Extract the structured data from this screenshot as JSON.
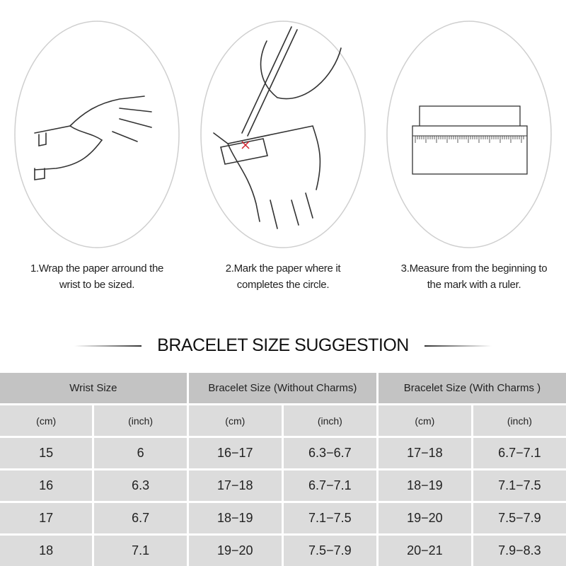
{
  "steps": [
    {
      "line1": "1.Wrap the paper arround the",
      "line2": "wrist to be sized."
    },
    {
      "line1": "2.Mark the paper where it",
      "line2": "completes the circle."
    },
    {
      "line1": "3.Measure from the beginning to",
      "line2": "the mark with a ruler."
    }
  ],
  "title": "BRACELET SIZE SUGGESTION",
  "colors": {
    "header": "#c3c3c3",
    "cell": "#dcdcdc",
    "mark": "#d0202a"
  },
  "table": {
    "groups": [
      "Wrist Size",
      "Bracelet Size (Without Charms)",
      "Bracelet Size (With Charms )"
    ],
    "units": [
      "(cm)",
      "(inch)",
      "(cm)",
      "(inch)",
      "(cm)",
      "(inch)"
    ],
    "rows": [
      [
        "15",
        "6",
        "16−17",
        "6.3−6.7",
        "17−18",
        "6.7−7.1"
      ],
      [
        "16",
        "6.3",
        "17−18",
        "6.7−7.1",
        "18−19",
        "7.1−7.5"
      ],
      [
        "17",
        "6.7",
        "18−19",
        "7.1−7.5",
        "19−20",
        "7.5−7.9"
      ],
      [
        "18",
        "7.1",
        "19−20",
        "7.5−7.9",
        "20−21",
        "7.9−8.3"
      ]
    ]
  }
}
